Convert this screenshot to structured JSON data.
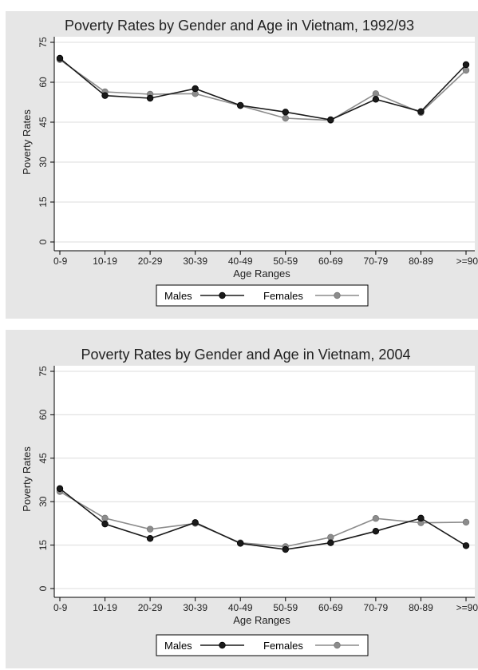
{
  "chart_data": [
    {
      "type": "line",
      "title": "Poverty Rates by Gender and Age in Vietnam, 1992/93",
      "xlabel": "Age Ranges",
      "ylabel": "Poverty Rates",
      "categories": [
        "0-9",
        "10-19",
        "20-29",
        "30-39",
        "40-49",
        "50-59",
        "60-69",
        "70-79",
        "80-89",
        ">=90"
      ],
      "ylim": [
        0,
        75
      ],
      "yticks": [
        0,
        15,
        30,
        45,
        60,
        75
      ],
      "grid": true,
      "legend_position": "bottom",
      "series": [
        {
          "name": "Males",
          "color": "#1a1a1a",
          "values": [
            69.0,
            55.0,
            54.0,
            57.6,
            51.3,
            48.8,
            45.9,
            53.6,
            49.0,
            66.6
          ]
        },
        {
          "name": "Females",
          "color": "#8c8c8c",
          "values": [
            68.5,
            56.4,
            55.5,
            55.7,
            51.2,
            46.5,
            45.7,
            55.7,
            48.6,
            64.5
          ]
        }
      ]
    },
    {
      "type": "line",
      "title": "Poverty Rates by Gender and Age in Vietnam, 2004",
      "xlabel": "Age Ranges",
      "ylabel": "Poverty Rates",
      "categories": [
        "0-9",
        "10-19",
        "20-29",
        "30-39",
        "40-49",
        "50-59",
        "60-69",
        "70-79",
        "80-89",
        ">=90"
      ],
      "ylim": [
        0,
        75
      ],
      "yticks": [
        0,
        15,
        30,
        45,
        60,
        75
      ],
      "grid": true,
      "legend_position": "bottom",
      "series": [
        {
          "name": "Males",
          "color": "#1a1a1a",
          "values": [
            34.5,
            22.3,
            17.3,
            22.8,
            15.6,
            13.5,
            15.8,
            19.8,
            24.3,
            14.8
          ]
        },
        {
          "name": "Females",
          "color": "#8c8c8c",
          "values": [
            33.5,
            24.3,
            20.5,
            22.5,
            15.8,
            14.5,
            17.7,
            24.2,
            22.7,
            22.9
          ]
        }
      ]
    }
  ]
}
